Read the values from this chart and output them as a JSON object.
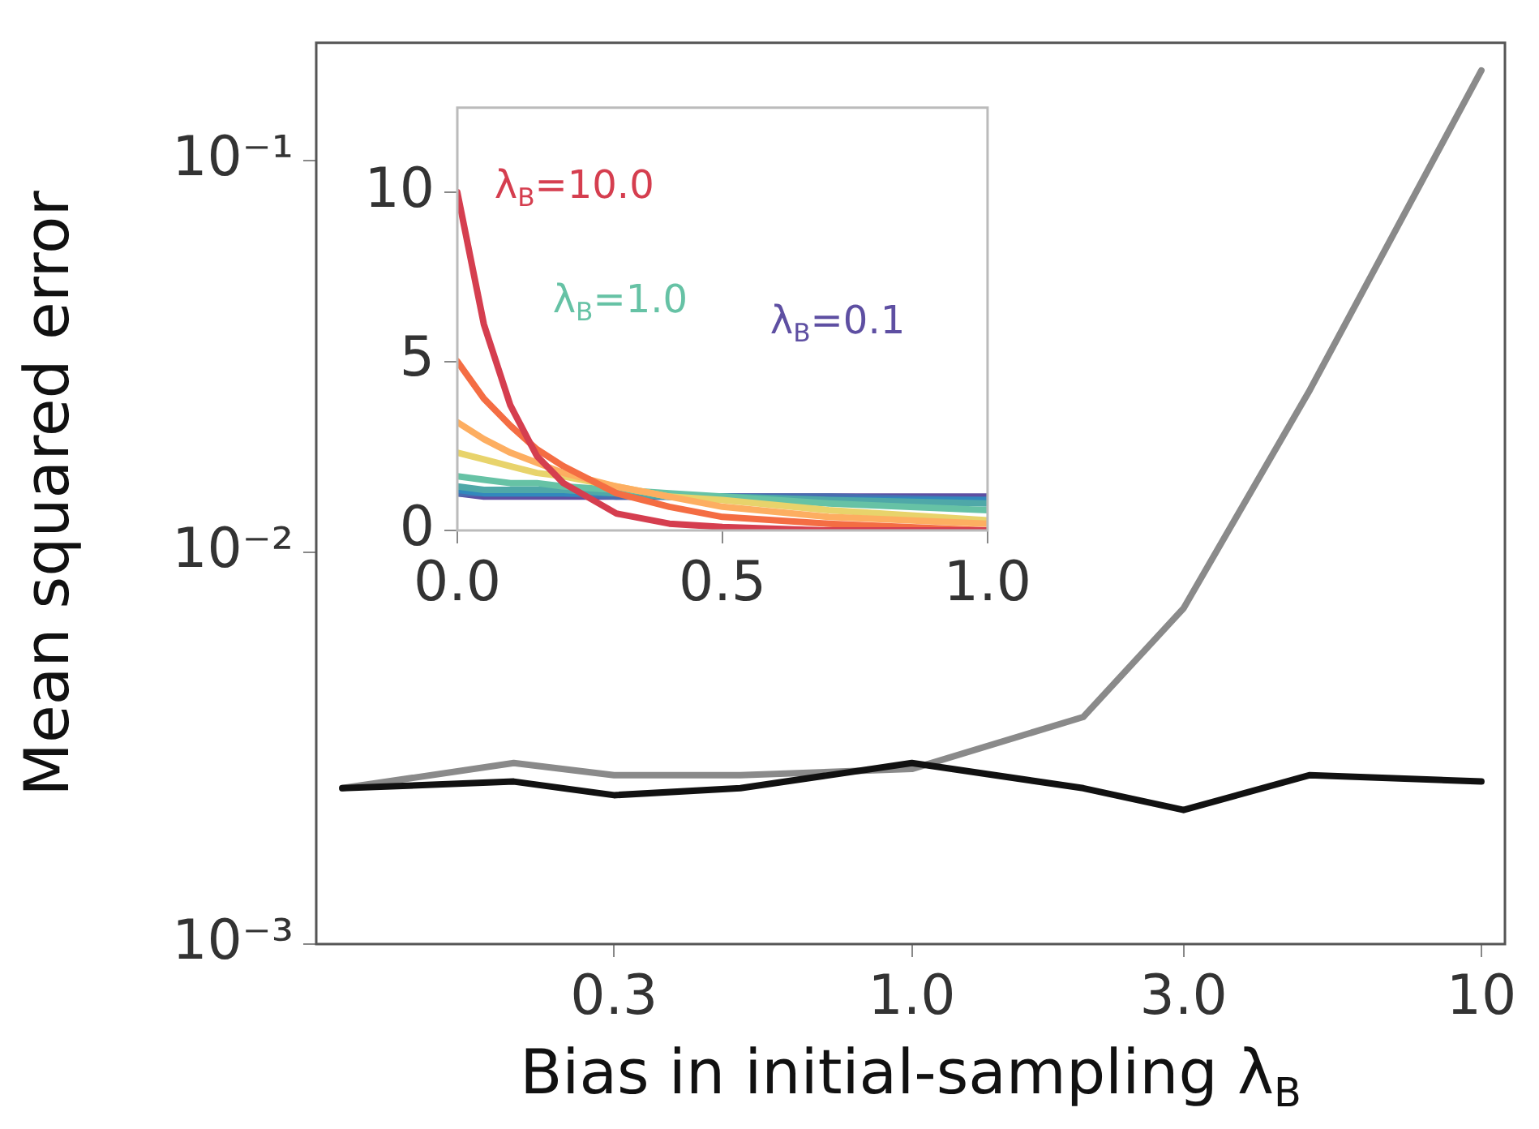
{
  "chart_data": [
    {
      "type": "line",
      "xlabel": "Bias in initial-sampling λ$_{B}$",
      "ylabel": "Mean squared error",
      "log": "xy",
      "x": [
        0.1,
        0.2,
        0.3,
        0.5,
        1,
        2,
        3,
        5,
        10
      ],
      "xlim": [
        0.09,
        11
      ],
      "xticks": [
        0.3,
        {
          "value": 1,
          "label": "1.0"
        },
        {
          "value": 3,
          "label": "3.0"
        },
        10
      ],
      "ylim": [
        0.001,
        0.2
      ],
      "yticks": [
        {
          "value": 0.001,
          "label": "10⁻³"
        },
        {
          "value": 0.01,
          "label": "10⁻²"
        },
        {
          "value": 0.1,
          "label": "10⁻¹"
        }
      ],
      "marker": "none",
      "line_style": "solid",
      "series": [
        {
          "color": "#111111",
          "values": [
            0.0025,
            0.0026,
            0.0024,
            0.0025,
            0.0029,
            0.0025,
            0.0022,
            0.0027,
            0.0026
          ]
        },
        {
          "color": "#8a8a8a",
          "values": [
            0.0025,
            0.0029,
            0.0027,
            0.0027,
            0.0028,
            0.0038,
            0.0072,
            0.026,
            0.17
          ]
        }
      ]
    },
    {
      "type": "line",
      "x": [
        0,
        0.05,
        0.1,
        0.15,
        0.2,
        0.3,
        0.4,
        0.5,
        0.7,
        1
      ],
      "xlim": [
        0,
        1
      ],
      "xticks": [
        {
          "value": 0,
          "label": "0.0"
        },
        0.5,
        {
          "value": 1,
          "label": "1.0"
        }
      ],
      "ylim": [
        0,
        12.5
      ],
      "yticks": [
        0,
        5,
        10
      ],
      "marker": "none",
      "line_style": "solid",
      "series": [
        {
          "name": "λ$_{B}$=10.0",
          "color": "#d53e4f",
          "values": [
            10,
            6.1,
            3.7,
            2.2,
            1.4,
            0.5,
            0.2,
            0.1,
            0,
            0
          ]
        },
        {
          "color": "#f46d43",
          "values": [
            5,
            3.9,
            3.1,
            2.4,
            1.9,
            1.1,
            0.7,
            0.4,
            0.2,
            0
          ]
        },
        {
          "color": "#fdae61",
          "values": [
            3.2,
            2.7,
            2.3,
            2,
            1.7,
            1.3,
            1,
            0.7,
            0.4,
            0.2
          ]
        },
        {
          "color": "#e8d36b",
          "values": [
            2.3,
            2.1,
            1.9,
            1.7,
            1.6,
            1.3,
            1,
            0.9,
            0.6,
            0.3
          ]
        },
        {
          "name": "λ$_{B}$=1.0",
          "color": "#66c2a5",
          "values": [
            1.6,
            1.5,
            1.4,
            1.4,
            1.3,
            1.2,
            1.1,
            1,
            0.8,
            0.6
          ]
        },
        {
          "color": "#4fa8a8",
          "values": [
            1.3,
            1.2,
            1.2,
            1.2,
            1.2,
            1.1,
            1,
            1,
            0.9,
            0.8
          ]
        },
        {
          "color": "#3288bd",
          "values": [
            1.2,
            1.1,
            1.1,
            1.1,
            1.1,
            1.1,
            1,
            1,
            0.9,
            0.9
          ]
        },
        {
          "color": "#4a6db0",
          "values": [
            1.1,
            1.1,
            1.1,
            1.1,
            1.1,
            1,
            1,
            1,
            1,
            0.9
          ]
        },
        {
          "name": "λ$_{B}$=0.1",
          "color": "#5e4fa2",
          "values": [
            1.1,
            1,
            1,
            1,
            1,
            1,
            1,
            1,
            1,
            1
          ]
        }
      ]
    }
  ]
}
